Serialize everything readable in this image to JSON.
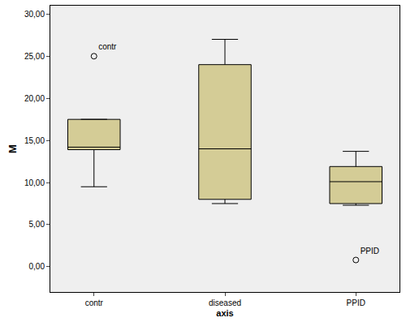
{
  "chart_data": {
    "type": "box",
    "x_label": "axis",
    "y_label": "M",
    "categories": [
      "contr",
      "diseased",
      "PPID"
    ],
    "boxes": [
      {
        "category": "contr",
        "lower": 9.5,
        "q1": 13.9,
        "median": 14.2,
        "q3": 17.5,
        "upper": 17.5
      },
      {
        "category": "diseased",
        "lower": 7.5,
        "q1": 8.0,
        "median": 14.0,
        "q3": 24.0,
        "upper": 27.0
      },
      {
        "category": "PPID",
        "lower": 7.3,
        "q1": 7.5,
        "median": 10.1,
        "q3": 11.9,
        "upper": 13.7
      }
    ],
    "outliers": [
      {
        "category": "contr",
        "value": 25.0,
        "label": "contr"
      },
      {
        "category": "PPID",
        "value": 0.8,
        "label": "PPID"
      }
    ],
    "color": "#d4cc96",
    "ylim": [
      -3,
      31
    ],
    "yticks": [
      {
        "value": 0,
        "label": "0,00"
      },
      {
        "value": 5,
        "label": "5,00"
      },
      {
        "value": 10,
        "label": "10,00"
      },
      {
        "value": 15,
        "label": "15,00"
      },
      {
        "value": 20,
        "label": "20,00"
      },
      {
        "value": 25,
        "label": "25,00"
      },
      {
        "value": 30,
        "label": "30,00"
      }
    ],
    "grid": false
  }
}
